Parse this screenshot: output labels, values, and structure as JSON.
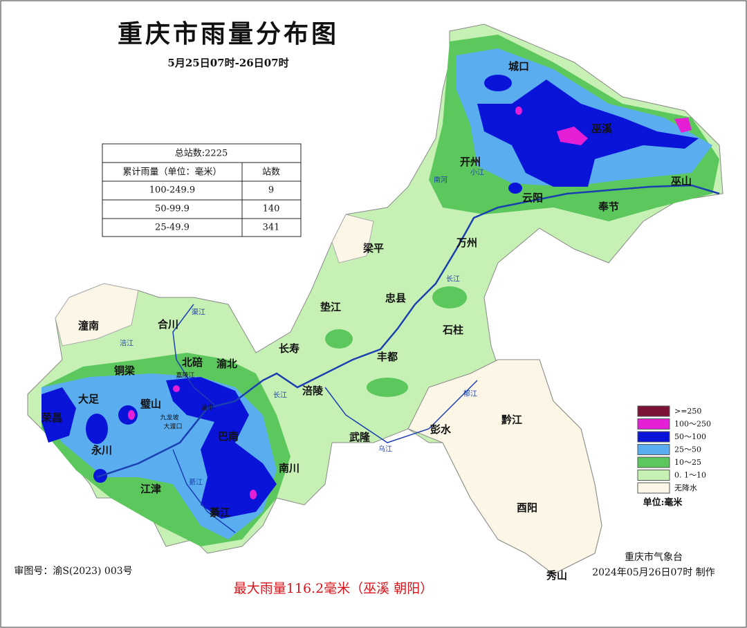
{
  "header": {
    "title": "重庆市雨量分布图",
    "subtitle": "5月25日07时-26日07时"
  },
  "table": {
    "title": "总站数:2225",
    "columns": [
      "累计雨量（单位：毫米）",
      "站数"
    ],
    "rows": [
      [
        "100-249.9",
        9
      ],
      [
        "50-99.9",
        140
      ],
      [
        "25-49.9",
        341
      ]
    ]
  },
  "legend": {
    "items": [
      {
        "label": ">=250",
        "color": "#7b1335"
      },
      {
        "label": "100～250",
        "color": "#e41fd6"
      },
      {
        "label": "50～100",
        "color": "#0a14d8"
      },
      {
        "label": "25～50",
        "color": "#5aaef0"
      },
      {
        "label": "10～25",
        "color": "#5cc75c"
      },
      {
        "label": "0. 1～10",
        "color": "#c7f0b5"
      },
      {
        "label": "无降水",
        "color": "#fbf6e6"
      }
    ],
    "unit": "单位:毫米"
  },
  "places": [
    "城口",
    "巫溪",
    "开州",
    "巫山",
    "云阳",
    "奉节",
    "梁平",
    "万州",
    "忠县",
    "垫江",
    "石柱",
    "潼南",
    "合川",
    "长寿",
    "丰都",
    "北碚",
    "渝北",
    "铜梁",
    "大足",
    "璧山",
    "涪陵",
    "荣昌",
    "黔江",
    "彭水",
    "武隆",
    "巴南",
    "永川",
    "南川",
    "江津",
    "綦江",
    "酉阳",
    "秀山"
  ],
  "small_places": [
    "嘉陵江",
    "九龙坡",
    "大渡口",
    "渝中"
  ],
  "rivers": [
    "长江",
    "长江",
    "乌江",
    "南河",
    "小江",
    "涪江",
    "綦江",
    "郁江",
    "渠江"
  ],
  "footer": {
    "review_no": "审图号：渝S(2023) 003号",
    "max_rain": "最大雨量116.2毫米（巫溪 朝阳）",
    "agency": "重庆市气象台",
    "made": "2024年05月26日07时 制作"
  }
}
